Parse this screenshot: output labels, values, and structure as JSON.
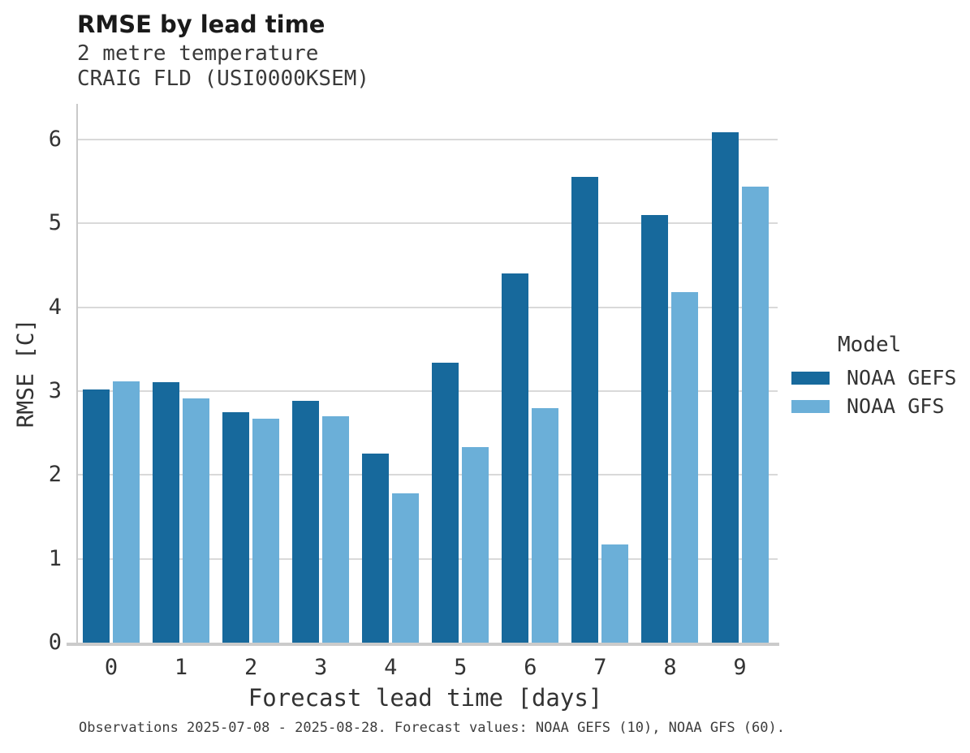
{
  "header": {
    "title": "RMSE by lead time",
    "subtitle_line1": "2 metre temperature",
    "subtitle_line2": "CRAIG FLD (USI0000KSEM)"
  },
  "chart_data": {
    "type": "bar",
    "title": "RMSE by lead time",
    "subtitle": [
      "2 metre temperature",
      "CRAIG FLD (USI0000KSEM)"
    ],
    "categories": [
      "0",
      "1",
      "2",
      "3",
      "4",
      "5",
      "6",
      "7",
      "8",
      "9"
    ],
    "series": [
      {
        "name": "NOAA GEFS",
        "color": "#17699c",
        "values": [
          3.02,
          3.11,
          2.75,
          2.88,
          2.25,
          3.34,
          4.4,
          5.55,
          5.1,
          6.09
        ]
      },
      {
        "name": "NOAA GFS",
        "color": "#6bafd8",
        "values": [
          3.12,
          2.91,
          2.67,
          2.7,
          1.78,
          2.33,
          2.8,
          1.17,
          4.18,
          5.44
        ]
      }
    ],
    "xlabel": "Forecast lead time [days]",
    "ylabel": "RMSE [C]",
    "ylim": [
      0,
      6.43
    ],
    "yticks": [
      0,
      1,
      2,
      3,
      4,
      5,
      6
    ],
    "grid": true,
    "gridline_color": "#d9d9d9",
    "legend_title": "Model",
    "legend_position": "right"
  },
  "footer": {
    "caption": "Observations 2025-07-08 - 2025-08-28. Forecast values: NOAA GEFS (10), NOAA GFS (60)."
  }
}
